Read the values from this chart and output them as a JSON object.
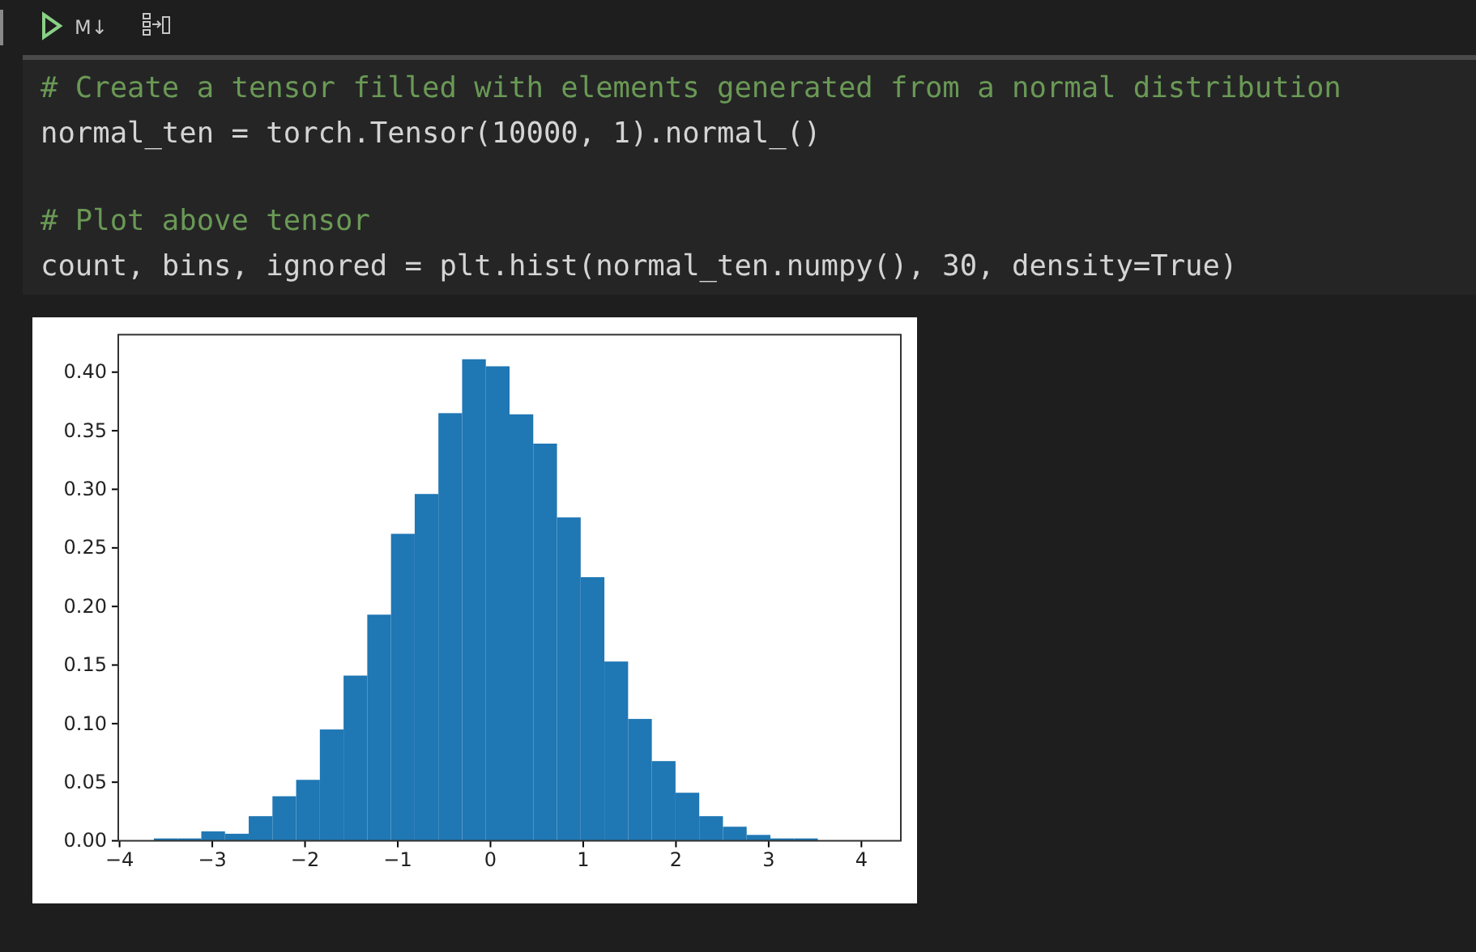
{
  "chart_data": {
    "type": "histogram",
    "bins": [
      -3.63,
      -3.3743,
      -3.1186,
      -2.8629,
      -2.6072,
      -2.3515,
      -2.0958,
      -1.8401,
      -1.5844,
      -1.3287,
      -1.073,
      -0.8173,
      -0.5616,
      -0.3059,
      -0.0502,
      0.2055,
      0.4612,
      0.7169,
      0.9726,
      1.2283,
      1.484,
      1.7397,
      1.9954,
      2.2511,
      2.5068,
      2.7625,
      3.0182,
      3.2739,
      3.5296,
      3.7853,
      4.041
    ],
    "values": [
      0.002,
      0.002,
      0.008,
      0.006,
      0.021,
      0.038,
      0.052,
      0.095,
      0.141,
      0.193,
      0.262,
      0.296,
      0.365,
      0.411,
      0.405,
      0.364,
      0.339,
      0.276,
      0.225,
      0.153,
      0.104,
      0.068,
      0.041,
      0.021,
      0.012,
      0.005,
      0.002,
      0.002,
      0,
      0
    ],
    "color": "#1f77b4",
    "xlim": [
      -4.014,
      4.425
    ],
    "ylim": [
      0,
      0.432
    ],
    "xticks": [
      {
        "value": -4,
        "label": "−4"
      },
      {
        "value": -3,
        "label": "−3"
      },
      {
        "value": -2,
        "label": "−2"
      },
      {
        "value": -1,
        "label": "−1"
      },
      0,
      1,
      2,
      3,
      4
    ],
    "yticks": [
      {
        "value": 0,
        "label": "0.00"
      },
      {
        "value": 0.05,
        "label": "0.05"
      },
      {
        "value": 0.1,
        "label": "0.10"
      },
      {
        "value": 0.15,
        "label": "0.15"
      },
      {
        "value": 0.2,
        "label": "0.20"
      },
      {
        "value": 0.25,
        "label": "0.25"
      },
      {
        "value": 0.3,
        "label": "0.30"
      },
      {
        "value": 0.35,
        "label": "0.35"
      },
      {
        "value": 0.4,
        "label": "0.40"
      }
    ],
    "grid": false,
    "annotations": [
      "M↓",
      "# Create a tensor filled with elements generated from a normal distribution",
      "normal_ten = torch.Tensor(10000, 1).normal_()",
      "# Plot above tensor",
      "count, bins, ignored = plt.hist(normal_ten.numpy(), 30, density=True)"
    ]
  }
}
